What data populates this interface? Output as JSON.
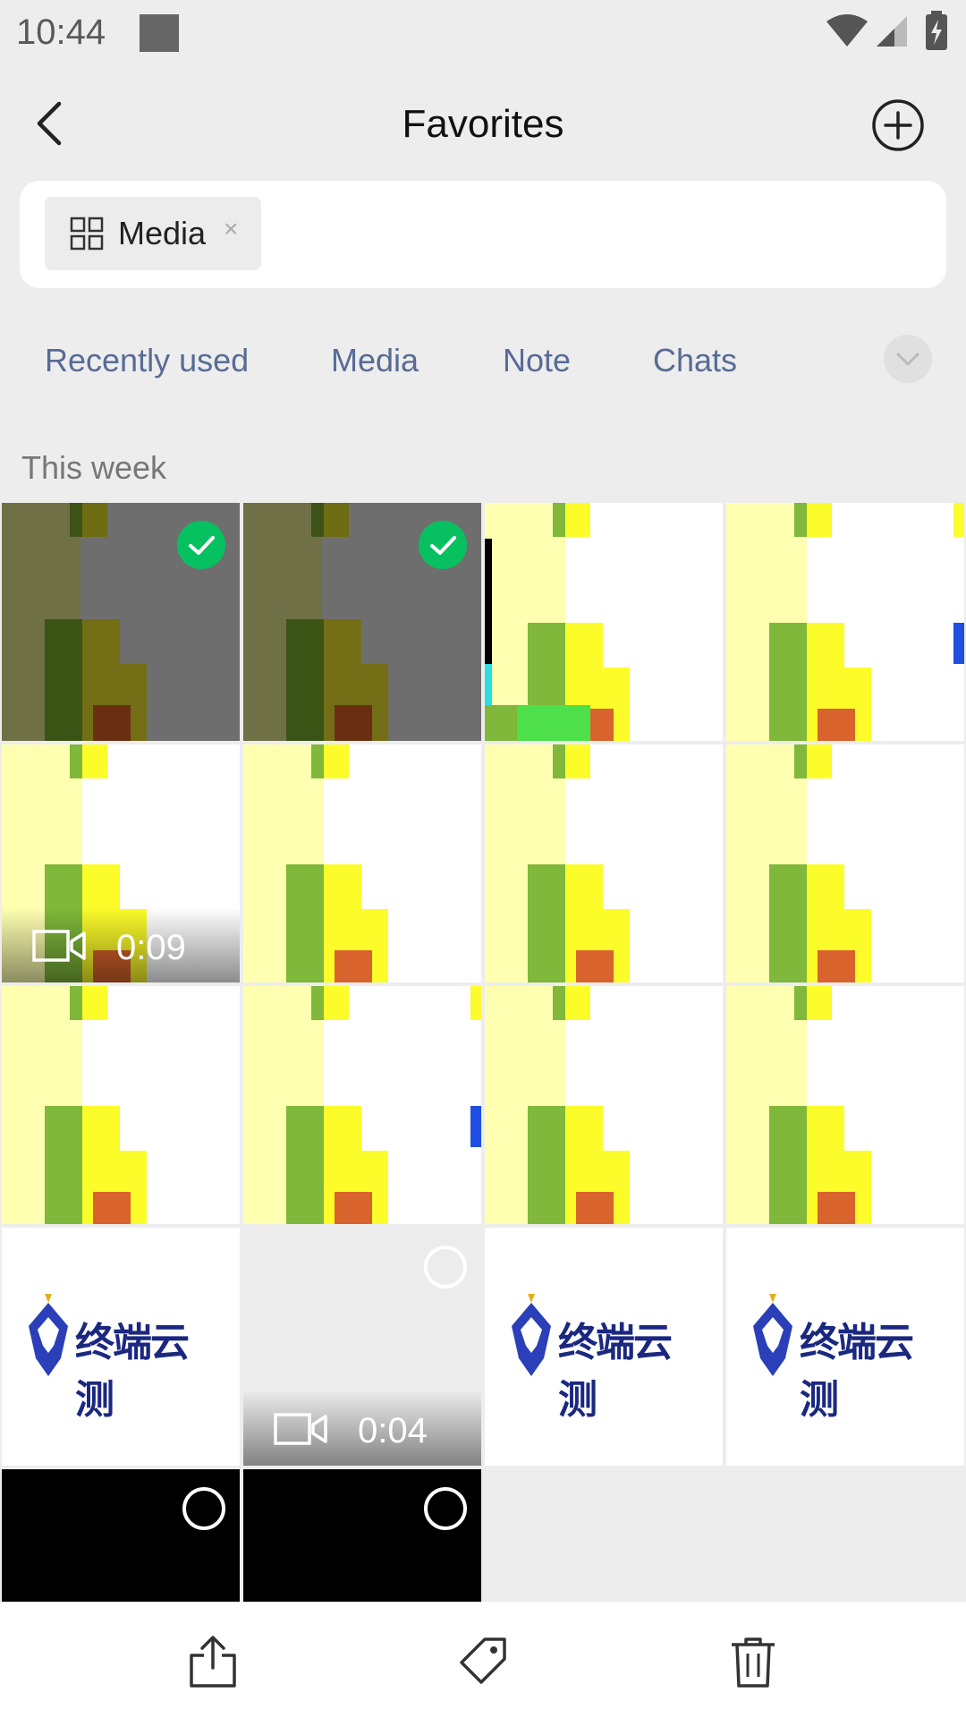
{
  "status_bar": {
    "time": "10:44"
  },
  "nav": {
    "title": "Favorites"
  },
  "search": {
    "chip_label": "Media",
    "chip_close": "×"
  },
  "tabs": [
    "Recently used",
    "Media",
    "Note",
    "Chats"
  ],
  "section_label": "This week",
  "grid": {
    "items": [
      {
        "kind": "green-scene",
        "checked": true
      },
      {
        "kind": "green-scene",
        "checked": true
      },
      {
        "kind": "yellow-scene-a"
      },
      {
        "kind": "yellow-scene-b"
      },
      {
        "kind": "yellow-scene-video",
        "duration": "0:09"
      },
      {
        "kind": "yellow-scene"
      },
      {
        "kind": "yellow-scene"
      },
      {
        "kind": "yellow-scene"
      },
      {
        "kind": "yellow-scene"
      },
      {
        "kind": "yellow-scene-b"
      },
      {
        "kind": "yellow-scene"
      },
      {
        "kind": "yellow-scene"
      },
      {
        "kind": "logo",
        "logo_text": "终端云测"
      },
      {
        "kind": "blank-video",
        "duration": "0:04",
        "selectable": true
      },
      {
        "kind": "logo",
        "logo_text": "终端云测"
      },
      {
        "kind": "logo",
        "logo_text": "终端云测"
      },
      {
        "kind": "black",
        "selectable": true
      },
      {
        "kind": "black",
        "selectable": true
      }
    ]
  },
  "toolbar": {
    "icons": [
      "share-icon",
      "tag-icon",
      "trash-icon"
    ]
  },
  "colors": {
    "accent_green": "#07c160",
    "tab_text": "#576b95",
    "background": "#ededed"
  }
}
